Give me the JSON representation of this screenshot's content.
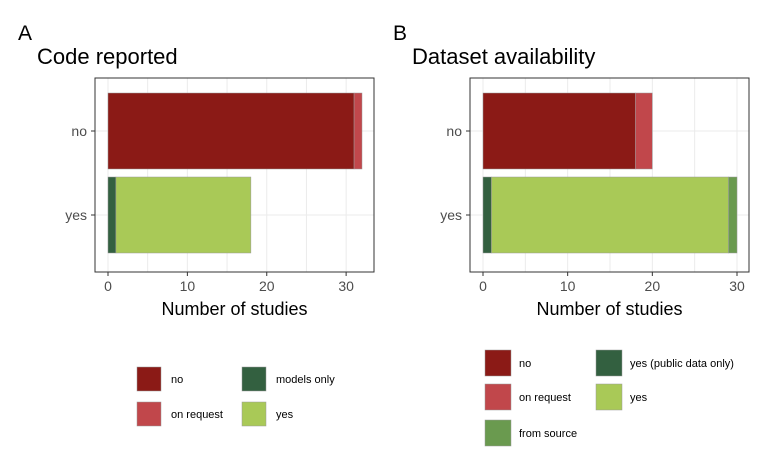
{
  "chart_data": [
    {
      "type": "bar",
      "orientation": "horizontal",
      "stacked": true,
      "panel_label": "A",
      "title": "Code reported",
      "xlabel": "Number of studies",
      "ylabel": "",
      "xlim": [
        0,
        32
      ],
      "x_ticks": [
        "0",
        "10",
        "20",
        "30"
      ],
      "categories": [
        "no",
        "yes"
      ],
      "series": [
        {
          "name": "no",
          "color": "#8b1a16",
          "values": [
            31,
            0
          ]
        },
        {
          "name": "on request",
          "color": "#c1474b",
          "values": [
            1,
            0
          ]
        },
        {
          "name": "models only",
          "color": "#336040",
          "values": [
            0,
            1
          ]
        },
        {
          "name": "yes",
          "color": "#a9c957",
          "values": [
            0,
            17
          ]
        }
      ],
      "legend_order": [
        "no",
        "models only",
        "on request",
        "yes"
      ],
      "grid": true,
      "legend_placement": "bottom"
    },
    {
      "type": "bar",
      "orientation": "horizontal",
      "stacked": true,
      "panel_label": "B",
      "title": "Dataset availability",
      "xlabel": "Number of studies",
      "ylabel": "",
      "xlim": [
        0,
        30
      ],
      "x_ticks": [
        "0",
        "10",
        "20",
        "30"
      ],
      "categories": [
        "no",
        "yes"
      ],
      "series": [
        {
          "name": "no",
          "color": "#8b1a16",
          "values": [
            18,
            0
          ]
        },
        {
          "name": "on request",
          "color": "#c1474b",
          "values": [
            2,
            0
          ]
        },
        {
          "name": "yes (public data only)",
          "color": "#336040",
          "values": [
            0,
            1
          ]
        },
        {
          "name": "yes",
          "color": "#a9c957",
          "values": [
            0,
            28
          ]
        },
        {
          "name": "from source",
          "color": "#6a9a4f",
          "values": [
            0,
            1
          ]
        }
      ],
      "legend_order": [
        "no",
        "yes (public data only)",
        "on request",
        "yes",
        "from source"
      ],
      "grid": true,
      "legend_placement": "bottom"
    }
  ]
}
